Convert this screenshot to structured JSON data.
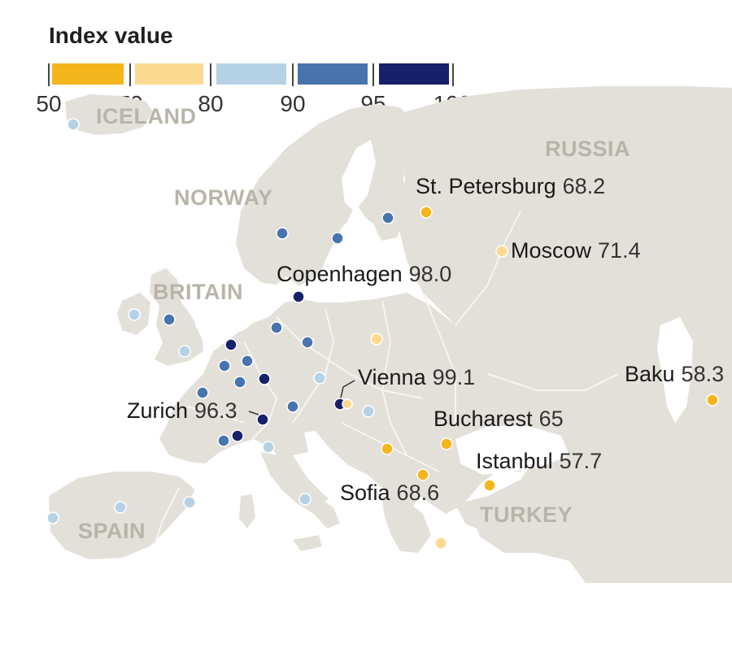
{
  "legend": {
    "title": "Index value",
    "bins": [
      {
        "from": 50,
        "to": 70,
        "color": "#f5b51c"
      },
      {
        "from": 70,
        "to": 80,
        "color": "#fbd98f"
      },
      {
        "from": 80,
        "to": 90,
        "color": "#b4d1e6"
      },
      {
        "from": 90,
        "to": 95,
        "color": "#4874ae"
      },
      {
        "from": 95,
        "to": 100,
        "color": "#16206b"
      }
    ],
    "tick_labels": [
      "50",
      "70",
      "80",
      "90",
      "95",
      "100"
    ]
  },
  "countries": [
    "ICELAND",
    "NORWAY",
    "RUSSIA",
    "BRITAIN",
    "SPAIN",
    "TURKEY"
  ],
  "cities": [
    {
      "name": "St. Petersburg",
      "value": "68.2"
    },
    {
      "name": "Moscow",
      "value": "71.4"
    },
    {
      "name": "Copenhagen",
      "value": "98.0"
    },
    {
      "name": "Vienna",
      "value": "99.1"
    },
    {
      "name": "Zurich",
      "value": "96.3"
    },
    {
      "name": "Baku",
      "value": "58.3"
    },
    {
      "name": "Bucharest",
      "value": "65"
    },
    {
      "name": "Istanbul",
      "value": "57.7"
    },
    {
      "name": "Sofia",
      "value": "68.6"
    }
  ],
  "colors": {
    "land": "#e3e0da",
    "sea": "#ffffff",
    "border": "#f6f4f0",
    "dot_outline": "#ffffff"
  }
}
